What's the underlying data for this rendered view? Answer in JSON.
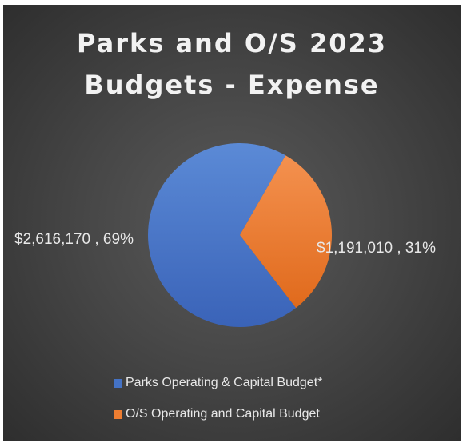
{
  "chart_data": {
    "type": "pie",
    "title_lines": [
      "Parks and O/S 2023",
      "Budgets - Expense"
    ],
    "categories": [
      "Parks Operating & Capital Budget*",
      "O/S Operating and Capital Budget"
    ],
    "values": [
      2616170,
      1191010
    ],
    "data_labels": [
      "$2,616,170 , 69%",
      "$1,191,010 , 31%"
    ],
    "colors": [
      "#4472c4",
      "#ed7d31"
    ],
    "legend_position": "bottom"
  }
}
